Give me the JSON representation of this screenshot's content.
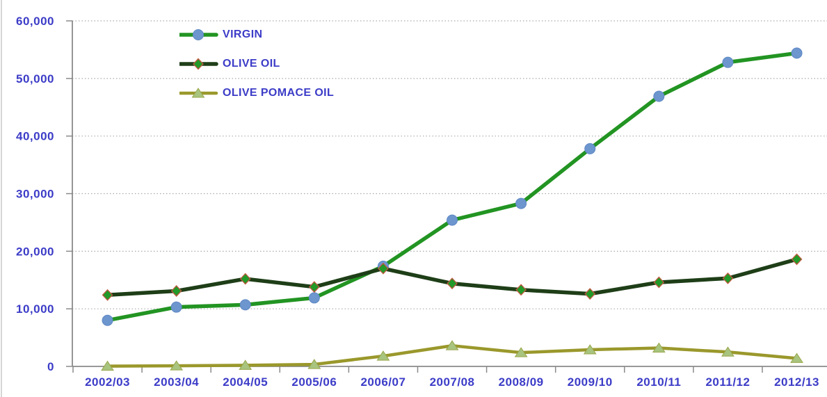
{
  "chart_data": {
    "type": "line",
    "title": "",
    "xlabel": "",
    "ylabel": "",
    "categories": [
      "2002/03",
      "2003/04",
      "2004/05",
      "2005/06",
      "2006/07",
      "2007/08",
      "2008/09",
      "2009/10",
      "2010/11",
      "2011/12",
      "2012/13"
    ],
    "series": [
      {
        "name": "VIRGIN",
        "line_color": "#229422",
        "line_width": 5.5,
        "marker": "circle",
        "marker_fill": "#6d96ce",
        "marker_edge": "#5e87c4",
        "values": [
          8000,
          10300,
          10700,
          11900,
          17400,
          25400,
          28300,
          37800,
          46900,
          52800,
          54400
        ]
      },
      {
        "name": "OLIVE OIL",
        "line_color": "#1e3e17",
        "line_width": 5.5,
        "marker": "diamond",
        "marker_fill": "#229928",
        "marker_edge": "#c1573f",
        "values": [
          12400,
          13100,
          15200,
          13800,
          17000,
          14400,
          13300,
          12600,
          14600,
          15300,
          18600
        ]
      },
      {
        "name": "OLIVE POMACE OIL",
        "line_color": "#9a982b",
        "line_width": 4.5,
        "marker": "triangle",
        "marker_fill": "#a8c47e",
        "marker_edge": "#9aa64a",
        "values": [
          50,
          100,
          200,
          350,
          1800,
          3600,
          2400,
          2900,
          3200,
          2500,
          1400
        ]
      }
    ],
    "ylim": [
      0,
      60000
    ],
    "ytick_step": 10000,
    "ytick_labels": [
      "0",
      "10,000",
      "20,000",
      "30,000",
      "40,000",
      "50,000",
      "60,000"
    ],
    "grid": "horizontal-dotted",
    "legend_position": "top-left-inside"
  },
  "colors": {
    "background": "#ffffff",
    "axis": "#8a8a8a",
    "gridline": "#a9a9a9",
    "label_text": "#3c3cc8",
    "frame_border": "#d6d6d6"
  }
}
